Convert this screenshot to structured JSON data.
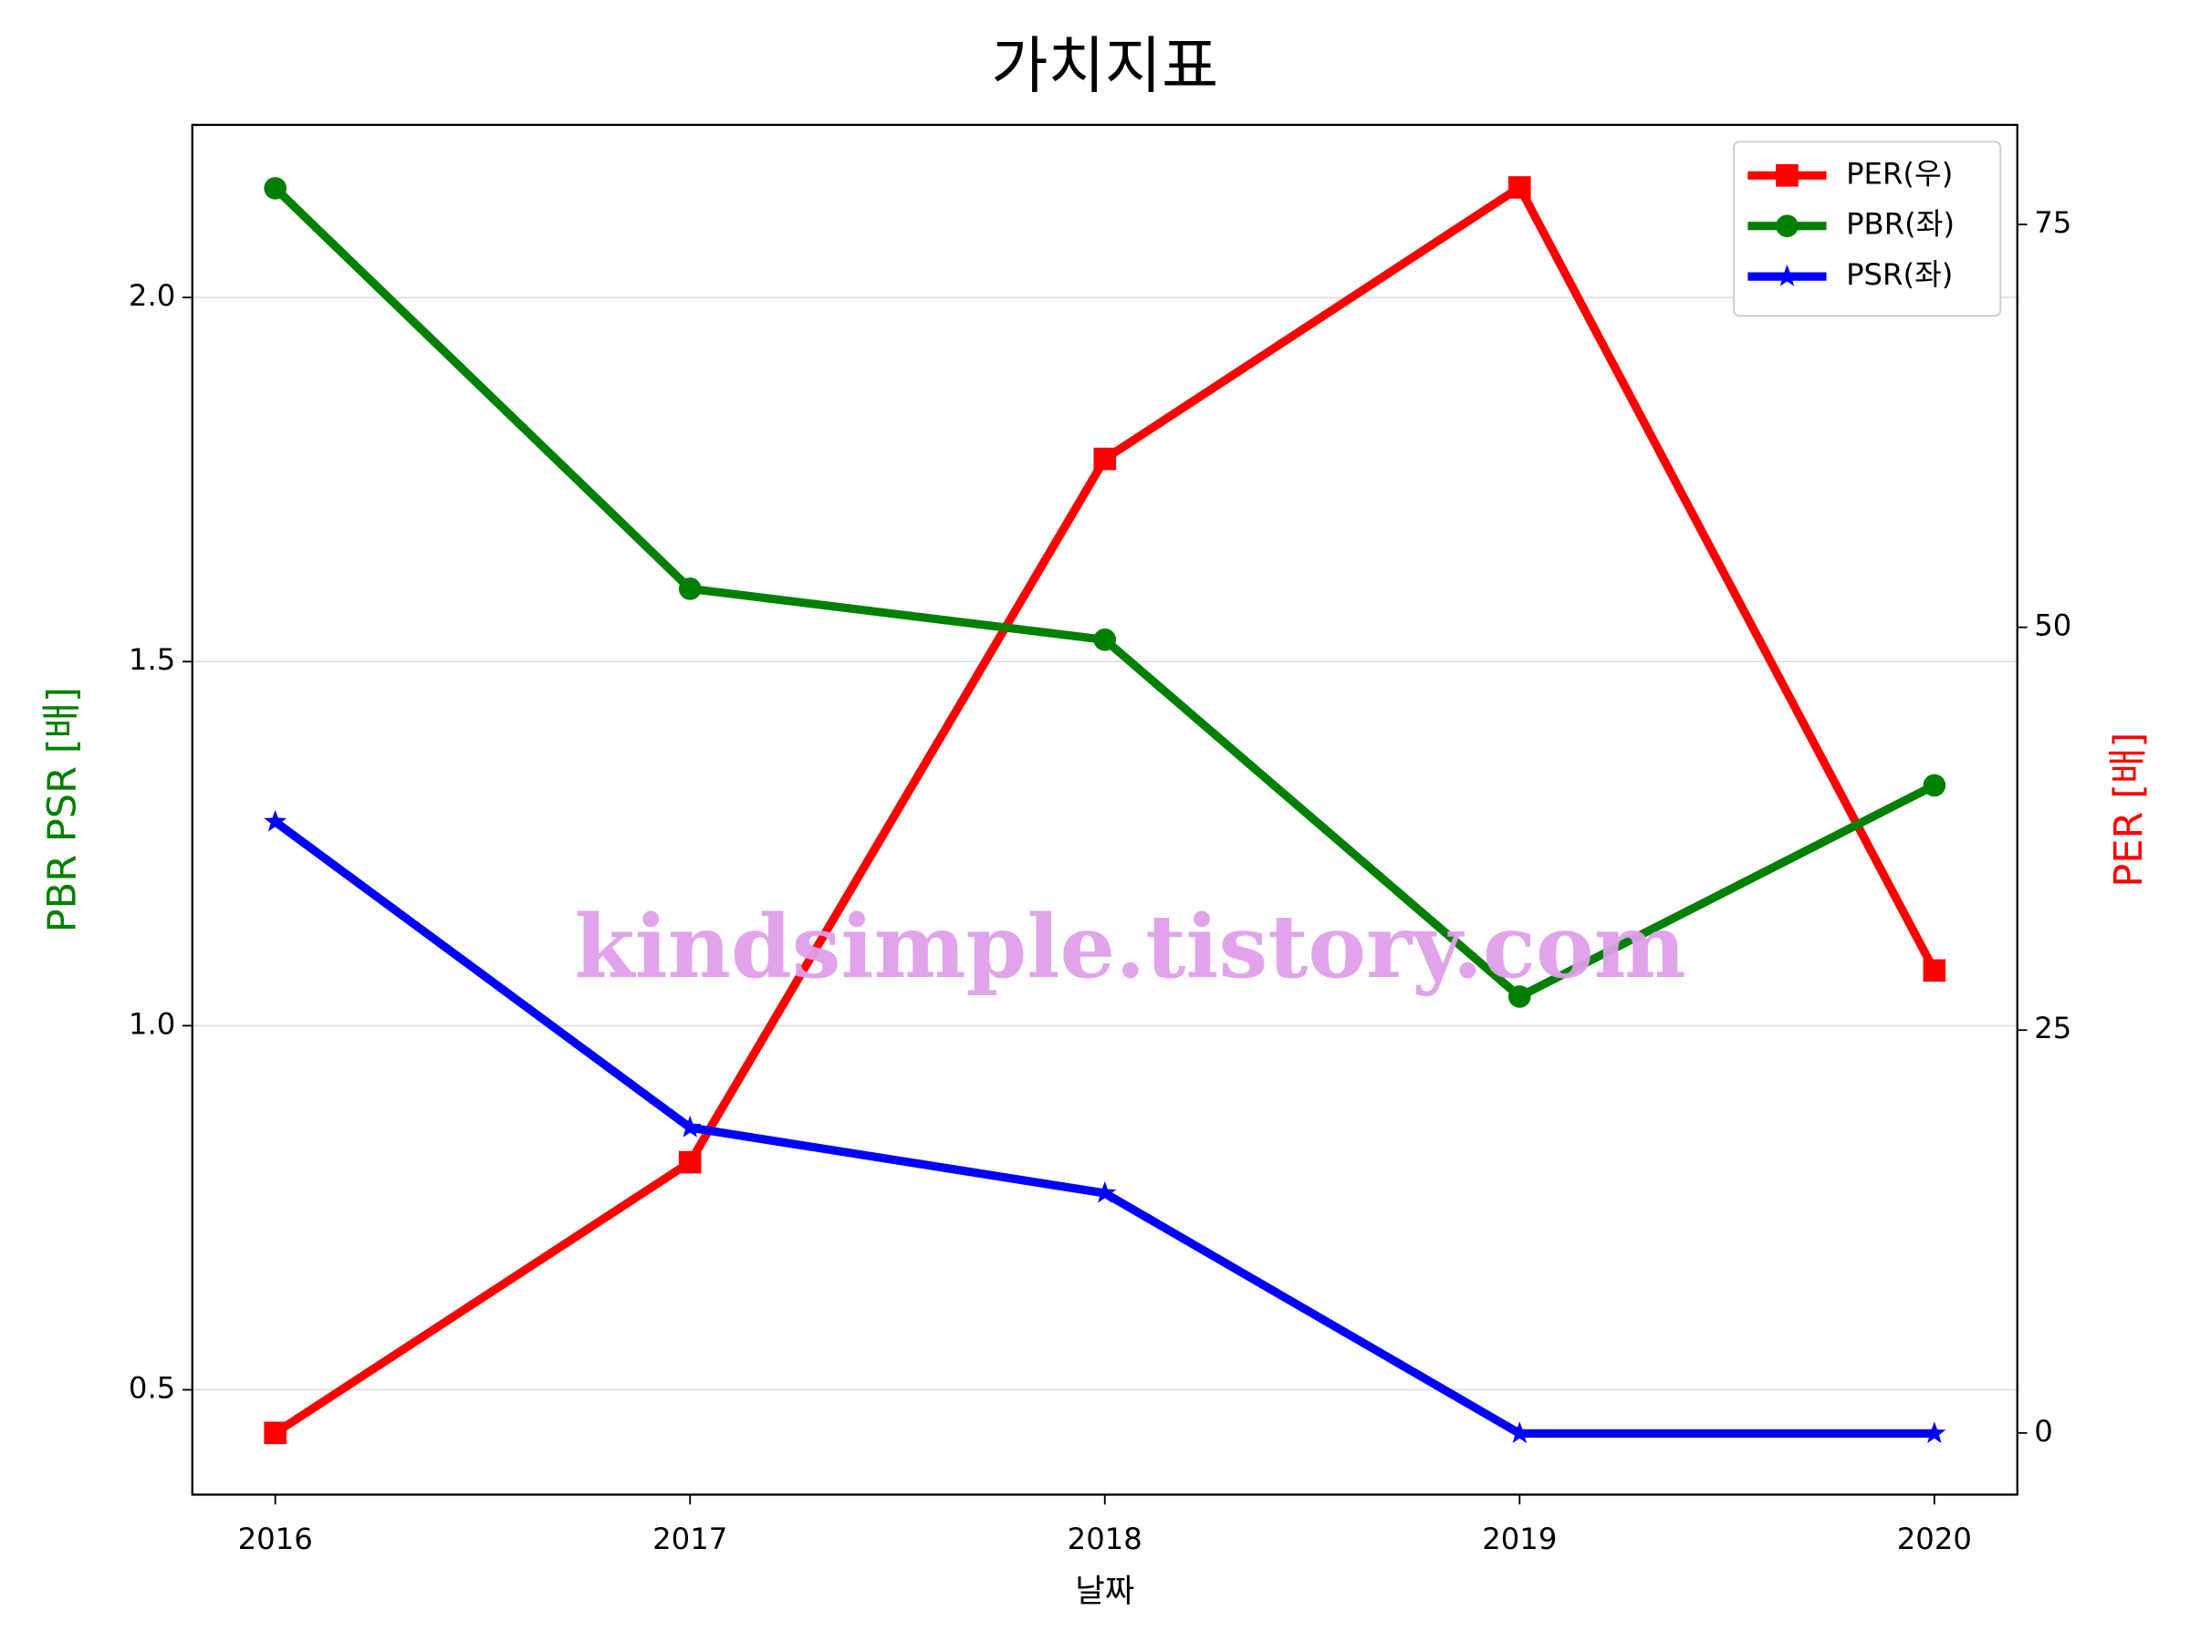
{
  "chart_data": {
    "type": "line",
    "title": "가치지표",
    "xlabel": "날짜",
    "ylabel": "PBR PSR [배]",
    "y2label": "PER [배]",
    "annotation": "kindsimple.tistory.com",
    "x": [
      2016,
      2017,
      2018,
      2019,
      2020
    ],
    "xlim": [
      2015.8,
      2020.2
    ],
    "xticks": [
      2016,
      2017,
      2018,
      2019,
      2020
    ],
    "ylim": [
      0.356,
      2.237
    ],
    "yticks": [
      0.5,
      {
        "value": 1,
        "label": "1.0"
      },
      1.5,
      {
        "value": 2,
        "label": "2.0"
      }
    ],
    "y2lim": [
      -3.83,
      81.18
    ],
    "y2ticks": [
      0,
      25,
      50,
      75
    ],
    "grid": true,
    "legend": "upper right",
    "series": [
      {
        "name": "PER(우)",
        "color": "#ff0000",
        "marker": "square",
        "axis": "y2",
        "values": [
          0,
          16.8,
          60.45,
          77.3,
          28.7
        ]
      },
      {
        "name": "PBR(좌)",
        "color": "#008000",
        "marker": "circle",
        "values": [
          2.15,
          1.6,
          1.53,
          1.04,
          1.33
        ]
      },
      {
        "name": "PSR(좌)",
        "color": "#0000ff",
        "marker": "star",
        "values": [
          1.28,
          0.86,
          0.77,
          0.44,
          0.44
        ]
      }
    ]
  }
}
